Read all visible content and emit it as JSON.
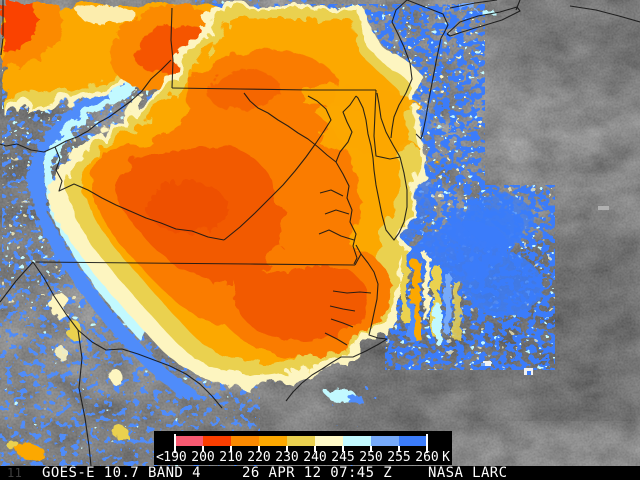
{
  "footer": {
    "product": "GOES-E 10.7 BAND 4",
    "datetime": "26 APR 12 07:45 Z",
    "credit": "NASA LARC",
    "corner_mark": "11"
  },
  "colorbar": {
    "prefix": "<",
    "unit": "K",
    "tick_labels": [
      "190",
      "200",
      "210",
      "220",
      "230",
      "240",
      "245",
      "250",
      "255",
      "260"
    ],
    "segment_colors": [
      "#F85A72",
      "#FB3E00",
      "#FB8A00",
      "#FCA800",
      "#EAD14F",
      "#FEF9C6",
      "#C2F9FF",
      "#76AAFA",
      "#3B7CFA"
    ],
    "tick_color": "#FFFFFF"
  }
}
